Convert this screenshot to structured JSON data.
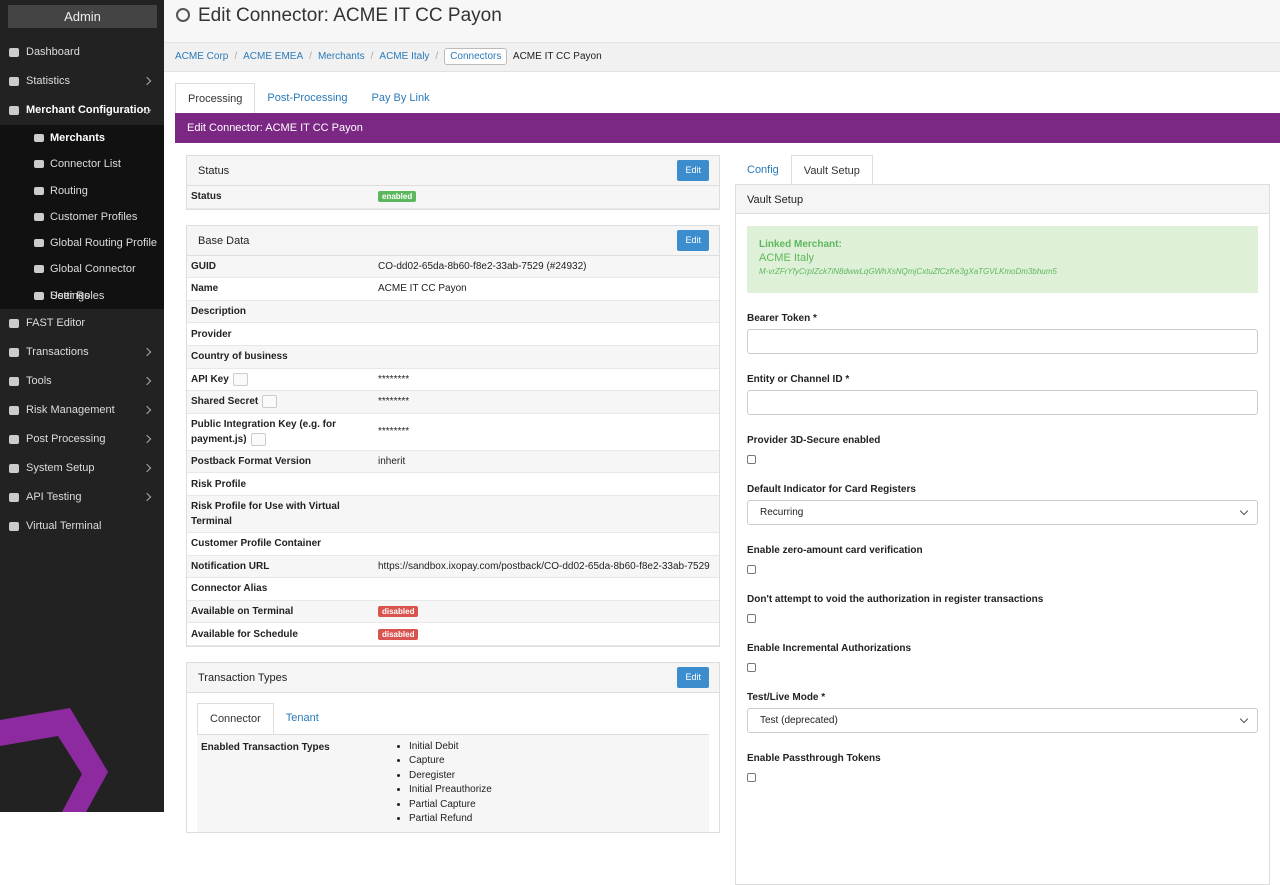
{
  "sidebar": {
    "title": "Admin",
    "items": [
      {
        "label": "Dashboard"
      },
      {
        "label": "Statistics",
        "expandable": true
      },
      {
        "label": "Merchant Configuration",
        "expandable": true,
        "open": true,
        "children": [
          {
            "label": "Merchants",
            "active": true
          },
          {
            "label": "Connector List"
          },
          {
            "label": "Routing"
          },
          {
            "label": "Customer Profiles"
          },
          {
            "label": "Global Routing Profile"
          },
          {
            "label": "Global Connector Settings"
          },
          {
            "label": "User Roles"
          }
        ]
      },
      {
        "label": "FAST Editor"
      },
      {
        "label": "Transactions",
        "expandable": true
      },
      {
        "label": "Tools",
        "expandable": true
      },
      {
        "label": "Risk Management",
        "expandable": true
      },
      {
        "label": "Post Processing",
        "expandable": true
      },
      {
        "label": "System Setup",
        "expandable": true
      },
      {
        "label": "API Testing",
        "expandable": true
      },
      {
        "label": "Virtual Terminal"
      }
    ]
  },
  "header": {
    "title": "Edit Connector: ACME IT CC Payon"
  },
  "breadcrumb": [
    "ACME Corp",
    "ACME EMEA",
    "Merchants",
    "ACME Italy",
    "Connectors",
    "ACME IT CC Payon"
  ],
  "tabs": [
    "Processing",
    "Post-Processing",
    "Pay By Link"
  ],
  "banner": "Edit Connector: ACME IT CC Payon",
  "panels": [
    {
      "title": "Status",
      "button": "Edit",
      "rows": [
        {
          "label": "Status",
          "badge": "enabled",
          "badge_color": "green"
        }
      ]
    },
    {
      "title": "Base Data",
      "button": "Edit",
      "rows": [
        {
          "label": "GUID",
          "value": "CO-dd02-65da-8b60-f8e2-33ab-7529 (#24932)"
        },
        {
          "label": "Name",
          "value": "ACME IT CC Payon"
        },
        {
          "label": "Description"
        },
        {
          "label": "Provider"
        },
        {
          "label": "Country of business"
        },
        {
          "label": "API Key",
          "secret": true,
          "value": "********"
        },
        {
          "label": "Shared Secret",
          "secret": true,
          "value": "********"
        },
        {
          "label": "Public Integration Key (e.g. for payment.js)",
          "secret": true,
          "value": "********"
        },
        {
          "label": "Postback Format Version",
          "value": "inherit"
        },
        {
          "label": "Risk Profile"
        },
        {
          "label": "Risk Profile for Use with Virtual Terminal"
        },
        {
          "label": "Customer Profile Container"
        },
        {
          "label": "Notification URL",
          "value": "https://sandbox.ixopay.com/postback/CO-dd02-65da-8b60-f8e2-33ab-7529"
        },
        {
          "label": "Connector Alias"
        },
        {
          "label": "Available on Terminal",
          "badge": "disabled",
          "badge_color": "red"
        },
        {
          "label": "Available for Schedule",
          "badge": "disabled",
          "badge_color": "red"
        }
      ]
    },
    {
      "title": "Transaction Types",
      "button": "Edit",
      "tabs": [
        "Connector",
        "Tenant"
      ],
      "label": "Enabled Transaction Types",
      "items": [
        "Initial Debit",
        "Capture",
        "Deregister",
        "Initial Preauthorize",
        "Partial Capture",
        "Partial Refund"
      ]
    }
  ],
  "right": {
    "tabs": [
      "Config",
      "Vault Setup"
    ],
    "title": "Vault Setup",
    "linked_merchant": {
      "title": "Linked Merchant:",
      "name": "ACME Italy",
      "id": "M-vrZFrYfyCrpIZck7iN8dwwLqGWhXsNQmjCxtuZfCzKe3gXaTGVLKmoDm3bhum5"
    },
    "fields": [
      {
        "label": "Bearer Token *",
        "kind": "text"
      },
      {
        "label": "Entity or Channel ID *",
        "kind": "text"
      },
      {
        "label": "Provider 3D-Secure enabled",
        "kind": "checkbox"
      },
      {
        "label": "Default Indicator for Card Registers",
        "kind": "select",
        "value": "Recurring"
      },
      {
        "label": "Enable zero-amount card verification",
        "kind": "checkbox"
      },
      {
        "label": "Don't attempt to void the authorization in register transactions",
        "kind": "checkbox"
      },
      {
        "label": "Enable Incremental Authorizations",
        "kind": "checkbox"
      },
      {
        "label": "Test/Live Mode *",
        "kind": "select",
        "value": "Test (deprecated)"
      },
      {
        "label": "Enable Passthrough Tokens",
        "kind": "checkbox"
      }
    ]
  }
}
